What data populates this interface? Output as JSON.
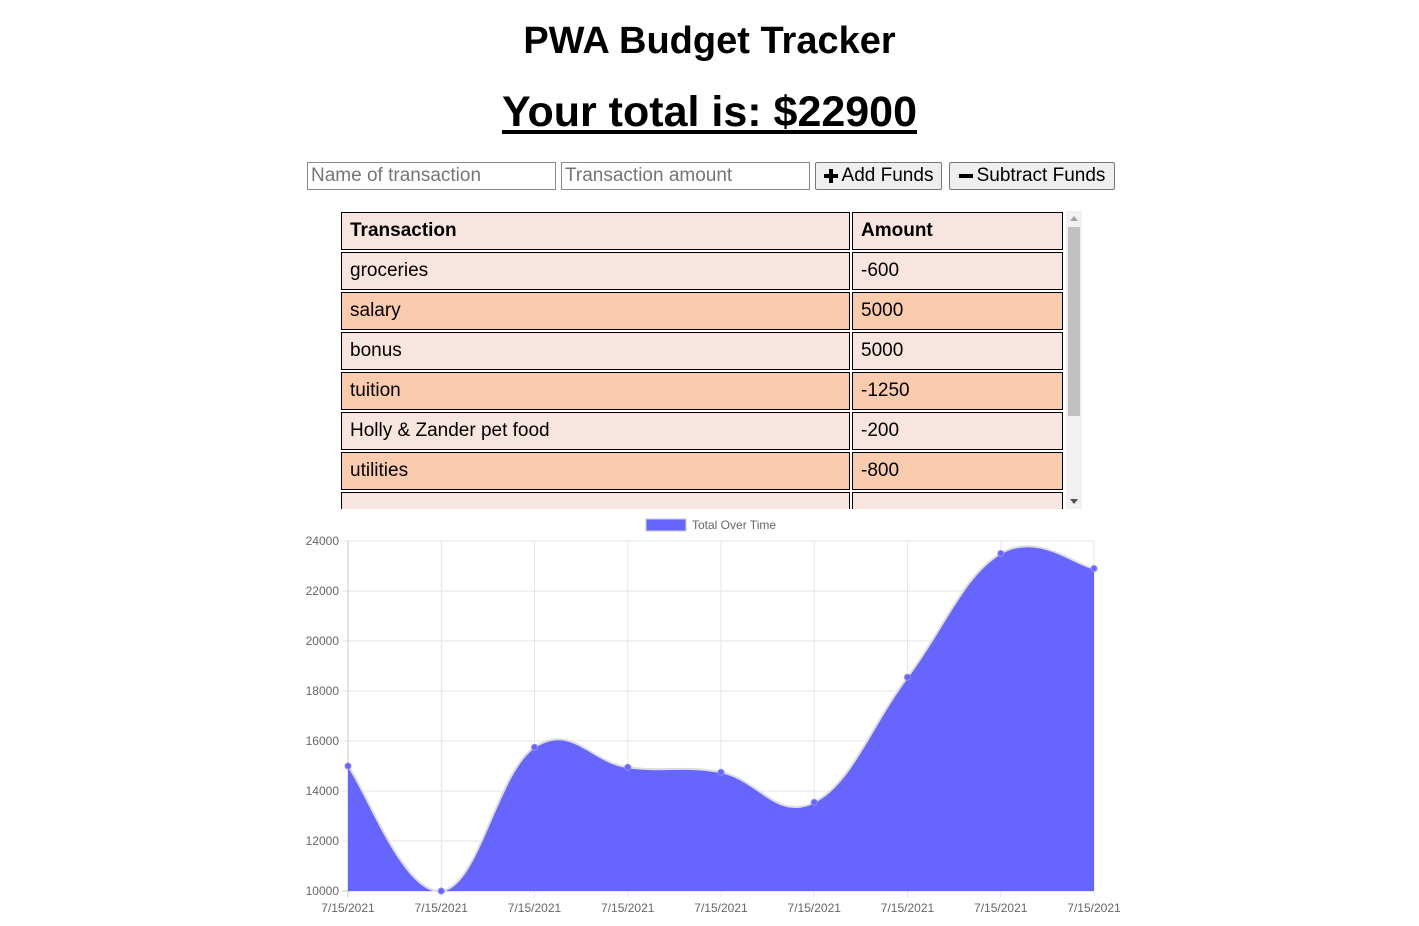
{
  "page": {
    "title": "PWA Budget Tracker",
    "total_label": "Your total is: $",
    "total_value": "22900"
  },
  "form": {
    "name_placeholder": "Name of transaction",
    "amount_placeholder": "Transaction amount",
    "add_label": "Add Funds",
    "subtract_label": "Subtract Funds"
  },
  "table": {
    "headers": [
      "Transaction",
      "Amount"
    ],
    "rows": [
      {
        "name": "groceries",
        "amount": "-600"
      },
      {
        "name": "salary",
        "amount": "5000"
      },
      {
        "name": "bonus",
        "amount": "5000"
      },
      {
        "name": "tuition",
        "amount": "-1250"
      },
      {
        "name": "Holly & Zander pet food",
        "amount": "-200"
      },
      {
        "name": "utilities",
        "amount": "-800"
      }
    ]
  },
  "colors": {
    "row_light": "#f9e5df",
    "row_dark": "#fbcbad",
    "chart_fill": "#6666ff"
  },
  "chart_data": {
    "type": "area",
    "legend": {
      "label": "Total Over Time",
      "position": "top"
    },
    "x": [
      "7/15/2021",
      "7/15/2021",
      "7/15/2021",
      "7/15/2021",
      "7/15/2021",
      "7/15/2021",
      "7/15/2021",
      "7/15/2021",
      "7/15/2021"
    ],
    "values": [
      15000,
      10000,
      15750,
      14950,
      14750,
      13550,
      18550,
      23500,
      22900
    ],
    "ylim": [
      10000,
      24000
    ],
    "yticks": [
      "24000",
      "22000",
      "20000",
      "18000",
      "16000",
      "14000",
      "12000",
      "10000"
    ],
    "grid": true
  }
}
